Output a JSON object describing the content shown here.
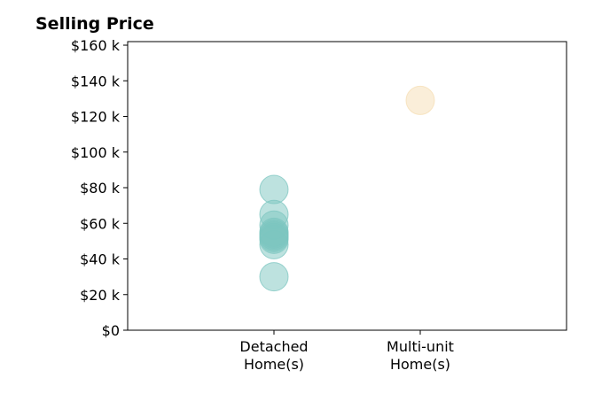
{
  "chart_data": {
    "type": "scatter",
    "title": "Selling Price",
    "xlabel": "",
    "ylabel": "",
    "categories": [
      "Detached Home(s)",
      "Multi-unit Home(s)"
    ],
    "category_lines": [
      [
        "Detached",
        "Home(s)"
      ],
      [
        "Multi-unit",
        "Home(s)"
      ]
    ],
    "x_range": [
      -1,
      2
    ],
    "ylim": [
      0,
      162
    ],
    "y_ticks": [
      {
        "value": 0,
        "label": "$0"
      },
      {
        "value": 20,
        "label": "$20 k"
      },
      {
        "value": 40,
        "label": "$40 k"
      },
      {
        "value": 60,
        "label": "$60 k"
      },
      {
        "value": 80,
        "label": "$80 k"
      },
      {
        "value": 100,
        "label": "$100 k"
      },
      {
        "value": 120,
        "label": "$120 k"
      },
      {
        "value": 140,
        "label": "$140 k"
      },
      {
        "value": 160,
        "label": "$160 k"
      }
    ],
    "series": [
      {
        "category": "Detached Home(s)",
        "color": "#7cc6c0",
        "values": [
          30,
          48,
          51,
          52,
          53,
          54,
          55,
          59,
          65,
          79
        ]
      },
      {
        "category": "Multi-unit Home(s)",
        "color": "#f5deb3",
        "values": [
          129
        ]
      }
    ],
    "grid": false,
    "legend": "none"
  }
}
